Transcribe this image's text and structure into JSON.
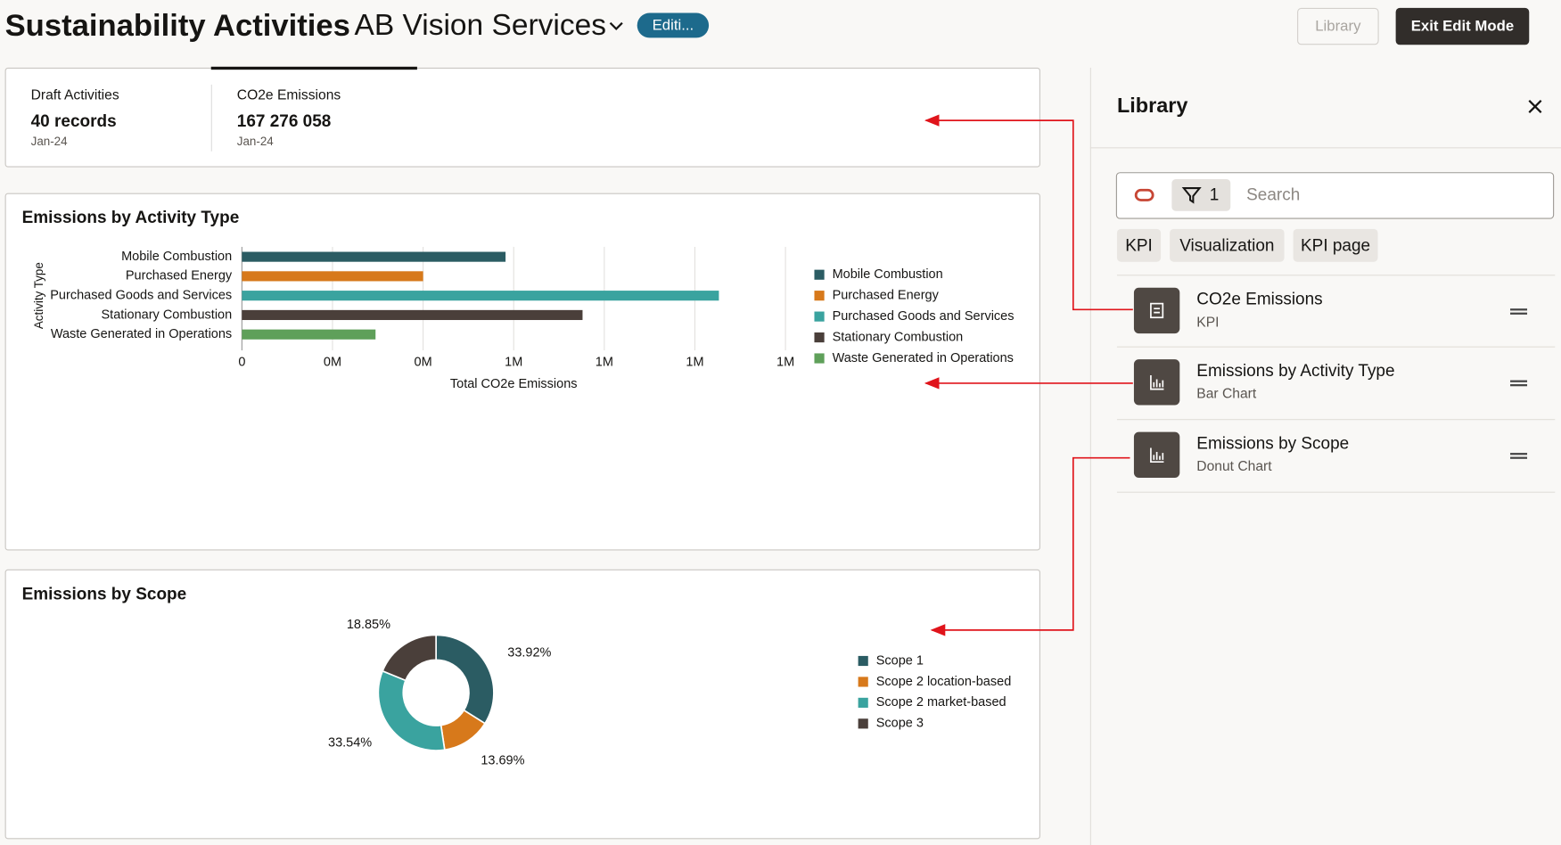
{
  "header": {
    "title": "Sustainability Activities",
    "subtitle": "AB Vision Services",
    "badge": "Editi...",
    "library_button": "Library",
    "exit_button": "Exit Edit Mode"
  },
  "kpi_tiles": [
    {
      "label": "Draft Activities",
      "value": "40 records",
      "period": "Jan-24"
    },
    {
      "label": "CO2e Emissions",
      "value": "167 276 058",
      "period": "Jan-24"
    }
  ],
  "chart_data": [
    {
      "type": "bar",
      "orientation": "horizontal",
      "title": "Emissions by Activity Type",
      "y_label": "Activity Type",
      "x_label": "Total CO2e Emissions",
      "categories": [
        "Mobile Combustion",
        "Purchased Energy",
        "Purchased Goods and Services",
        "Stationary Combustion",
        "Waste Generated in Operations"
      ],
      "values": [
        582000,
        400000,
        1053000,
        752000,
        295000
      ],
      "colors": [
        "#2b5c63",
        "#d7791b",
        "#3aa39f",
        "#4a3f3a",
        "#5fa05a"
      ],
      "xlim": [
        0,
        1200000
      ],
      "xticks": [
        0,
        {
          "value": 200000,
          "label": "0M"
        },
        {
          "value": 400000,
          "label": "0M"
        },
        {
          "value": 600000,
          "label": "1M"
        },
        {
          "value": 800000,
          "label": "1M"
        },
        {
          "value": 1000000,
          "label": "1M"
        },
        {
          "value": 1200000,
          "label": "1M"
        }
      ],
      "grid": true,
      "legend": "right"
    },
    {
      "type": "donut",
      "title": "Emissions by Scope",
      "categories": [
        "Scope 1",
        "Scope 2 location-based",
        "Scope 2 market-based",
        "Scope 3"
      ],
      "values": [
        33.92,
        13.69,
        33.54,
        18.85
      ],
      "value_labels": [
        "33.92%",
        "13.69%",
        "33.54%",
        "18.85%"
      ],
      "colors": [
        "#2b5c63",
        "#d7791b",
        "#3aa39f",
        "#4a3f3a"
      ],
      "legend": "right"
    }
  ],
  "library": {
    "title": "Library",
    "filter_count": 1,
    "search_placeholder": "Search",
    "chips": [
      "KPI",
      "Visualization",
      "KPI page"
    ],
    "items": [
      {
        "title": "CO2e Emissions",
        "subtitle": "KPI"
      },
      {
        "title": "Emissions by Activity Type",
        "subtitle": "Bar Chart"
      },
      {
        "title": "Emissions by Scope",
        "subtitle": "Donut Chart"
      }
    ]
  }
}
